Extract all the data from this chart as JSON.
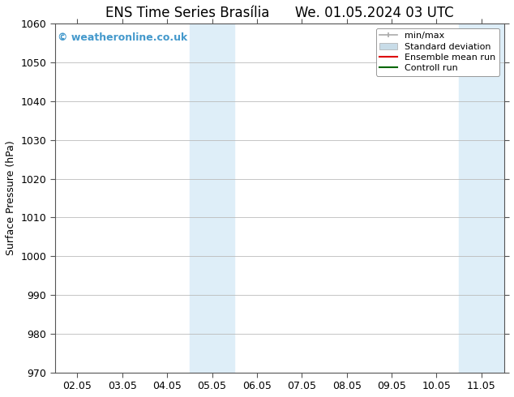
{
  "title_left": "ENS Time Series Brasília",
  "title_right": "We. 01.05.2024 03 UTC",
  "ylabel": "Surface Pressure (hPa)",
  "ylim": [
    970,
    1060
  ],
  "yticks": [
    970,
    980,
    990,
    1000,
    1010,
    1020,
    1030,
    1040,
    1050,
    1060
  ],
  "xtick_labels": [
    "02.05",
    "03.05",
    "04.05",
    "05.05",
    "06.05",
    "07.05",
    "08.05",
    "09.05",
    "10.05",
    "11.05"
  ],
  "xtick_positions": [
    0,
    1,
    2,
    3,
    4,
    5,
    6,
    7,
    8,
    9
  ],
  "xlim": [
    -0.5,
    9.5
  ],
  "shaded_regions": [
    {
      "x_start": 2.5,
      "x_end": 3.0,
      "color": "#deeef8"
    },
    {
      "x_start": 3.0,
      "x_end": 3.5,
      "color": "#deeef8"
    },
    {
      "x_start": 8.5,
      "x_end": 9.0,
      "color": "#deeef8"
    },
    {
      "x_start": 9.0,
      "x_end": 9.5,
      "color": "#deeef8"
    }
  ],
  "watermark_text": "© weatheronline.co.uk",
  "watermark_color": "#4499cc",
  "background_color": "#ffffff",
  "grid_color": "#bbbbbb",
  "legend_items": [
    {
      "label": "min/max",
      "color": "#aaaaaa",
      "type": "minmax"
    },
    {
      "label": "Standard deviation",
      "color": "#c8dce8",
      "type": "band"
    },
    {
      "label": "Ensemble mean run",
      "color": "#dd0000",
      "type": "line"
    },
    {
      "label": "Controll run",
      "color": "#006600",
      "type": "line"
    }
  ],
  "title_fontsize": 12,
  "axis_label_fontsize": 9,
  "tick_fontsize": 9,
  "legend_fontsize": 8,
  "watermark_fontsize": 9
}
